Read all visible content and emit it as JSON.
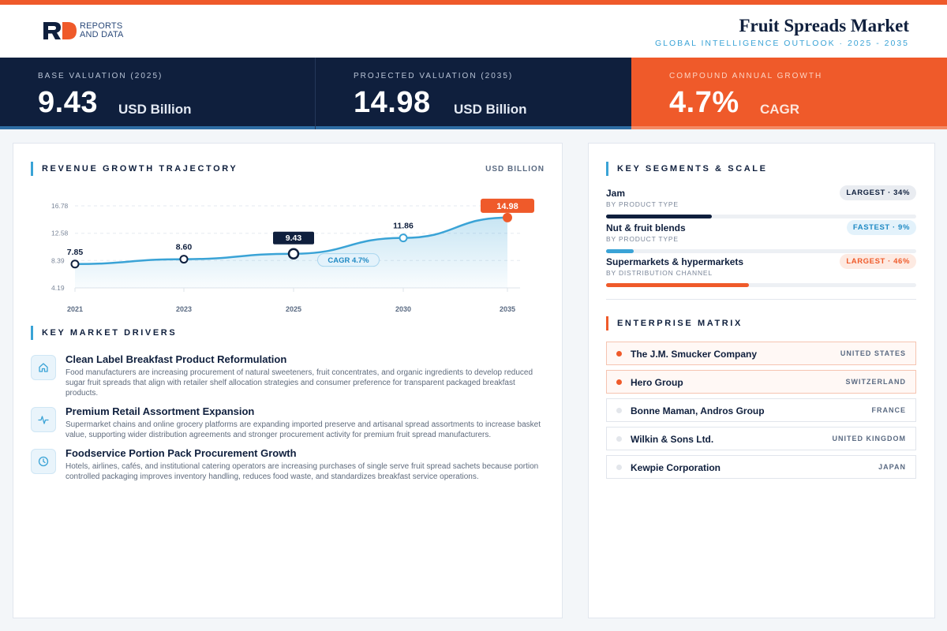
{
  "brand": {
    "logo_line1": "REPORTS",
    "logo_line2": "AND DATA"
  },
  "header": {
    "title": "Fruit Spreads Market",
    "subtitle": "GLOBAL INTELLIGENCE OUTLOOK · 2025 - 2035"
  },
  "kpis": [
    {
      "label": "BASE VALUATION (2025)",
      "value": "9.43",
      "unit": "USD Billion"
    },
    {
      "label": "PROJECTED VALUATION (2035)",
      "value": "14.98",
      "unit": "USD Billion"
    },
    {
      "label": "COMPOUND ANNUAL GROWTH",
      "value": "4.7%",
      "unit": "CAGR"
    }
  ],
  "revenue": {
    "title": "REVENUE GROWTH TRAJECTORY",
    "unit": "USD BILLION",
    "cagr_label": "CAGR 4.7%"
  },
  "chart_data": {
    "type": "area",
    "categories": [
      "2021",
      "2023",
      "2025",
      "2030",
      "2035"
    ],
    "values": [
      7.85,
      8.6,
      9.43,
      11.86,
      14.98
    ],
    "value_labels": [
      "7.85",
      "8.60",
      "9.43",
      "11.86",
      "14.98"
    ],
    "y_ticks": [
      "16.78",
      "12.58",
      "8.39",
      "4.19"
    ],
    "y_tick_values": [
      16.78,
      12.58,
      8.39,
      4.19
    ],
    "ylim": [
      4.19,
      16.78
    ],
    "grid": true,
    "colors": {
      "line": "#3aa3d6",
      "highlight": "#0f1f3d",
      "end": "#ef5a2a"
    }
  },
  "drivers": {
    "title": "KEY MARKET DRIVERS",
    "items": [
      {
        "icon": "home-icon",
        "title": "Clean Label Breakfast Product Reformulation",
        "text": "Food manufacturers are increasing procurement of natural sweeteners, fruit concentrates, and organic ingredients to develop reduced sugar fruit spreads that align with retailer shelf allocation strategies and consumer preference for transparent packaged breakfast products."
      },
      {
        "icon": "activity-icon",
        "title": "Premium Retail Assortment Expansion",
        "text": "Supermarket chains and online grocery platforms are expanding imported preserve and artisanal spread assortments to increase basket value, supporting wider distribution agreements and stronger procurement activity for premium fruit spread manufacturers."
      },
      {
        "icon": "clock-icon",
        "title": "Foodservice Portion Pack Procurement Growth",
        "text": "Hotels, airlines, cafés, and institutional catering operators are increasing purchases of single serve fruit spread sachets because portion controlled packaging improves inventory handling, reduces food waste, and standardizes breakfast service operations."
      }
    ]
  },
  "segments": {
    "title": "KEY SEGMENTS & SCALE",
    "items": [
      {
        "name": "Jam",
        "sub": "BY PRODUCT TYPE",
        "badge": "LARGEST · 34%",
        "share": 34,
        "color": "#0f1f3d"
      },
      {
        "name": "Nut & fruit blends",
        "sub": "BY PRODUCT TYPE",
        "badge": "FASTEST · 9%",
        "share": 9,
        "color": "#3aa3d6"
      },
      {
        "name": "Supermarkets & hypermarkets",
        "sub": "BY DISTRIBUTION CHANNEL",
        "badge": "LARGEST · 46%",
        "share": 46,
        "color": "#ef5a2a"
      }
    ]
  },
  "enterprise": {
    "title": "ENTERPRISE MATRIX",
    "items": [
      {
        "name": "The J.M. Smucker Company",
        "country": "UNITED STATES"
      },
      {
        "name": "Hero Group",
        "country": "SWITZERLAND"
      },
      {
        "name": "Bonne Maman, Andros Group",
        "country": "FRANCE"
      },
      {
        "name": "Wilkin & Sons Ltd.",
        "country": "UNITED KINGDOM"
      },
      {
        "name": "Kewpie Corporation",
        "country": "JAPAN"
      }
    ]
  }
}
